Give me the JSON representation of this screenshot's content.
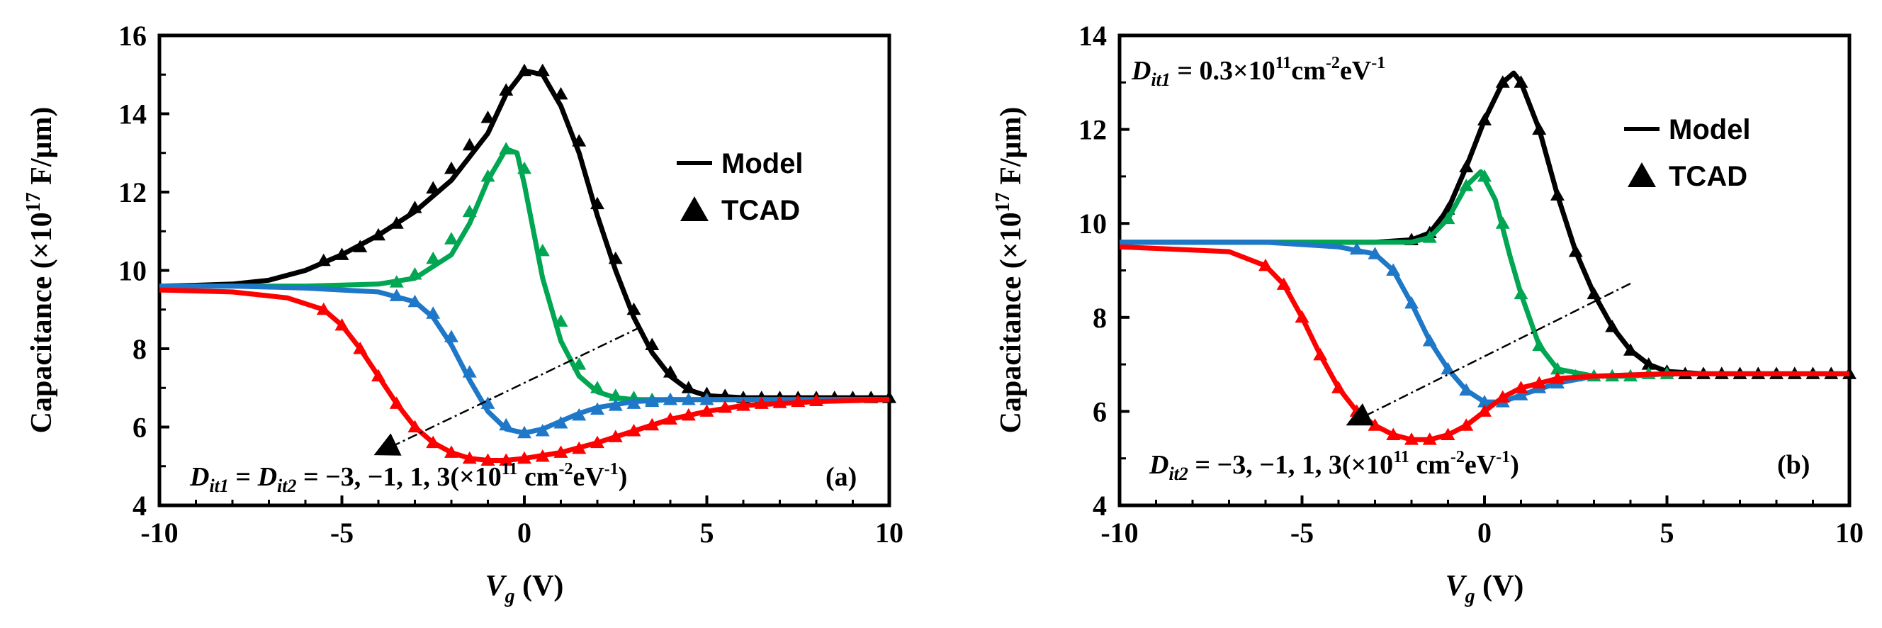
{
  "chart_data": [
    {
      "type": "line",
      "panel_label": "(a)",
      "xlabel": "V_g (V)",
      "xlabel_main": "V",
      "xlabel_sub": "g",
      "xlabel_unit": " (V)",
      "ylabel": "Capacitance (×10^17 F/μm)",
      "ylabel_pre": "Capacitance (",
      "ylabel_times": "×",
      "ylabel_ten": "10",
      "ylabel_exp": "17",
      "ylabel_post": " F/μm)",
      "xlim": [
        -10,
        10
      ],
      "ylim": [
        4,
        16
      ],
      "xticks": [
        -10,
        -5,
        0,
        5,
        10
      ],
      "yticks": [
        4,
        6,
        8,
        10,
        12,
        14,
        16
      ],
      "legend": {
        "position": "right-middle",
        "model": "Model",
        "tcad": "TCAD"
      },
      "annotations": [
        {
          "id": "dit",
          "parts": [
            "D",
            "it1",
            " = ",
            "D",
            "it2",
            " = −3, −1, 1, 3(×10",
            "11",
            " cm",
            "-2",
            "eV",
            "-1",
            ")"
          ]
        }
      ],
      "arrow": {
        "from": [
          3.7,
          8.5
        ],
        "to": [
          -4.0,
          5.2
        ]
      },
      "series": [
        {
          "name": "Dit = 3",
          "color": "#000000",
          "model_x": [
            -10,
            -9,
            -8,
            -7,
            -6,
            -5,
            -4,
            -3,
            -2,
            -1,
            -0.5,
            0,
            0.5,
            1,
            1.5,
            2,
            2.5,
            3,
            3.5,
            4,
            4.5,
            5,
            6,
            7,
            8,
            9,
            10
          ],
          "model_y": [
            9.6,
            9.62,
            9.65,
            9.75,
            10.0,
            10.4,
            10.9,
            11.5,
            12.3,
            13.5,
            14.5,
            15.1,
            15.0,
            14.2,
            13.0,
            11.4,
            10.0,
            8.8,
            7.9,
            7.3,
            6.95,
            6.8,
            6.75,
            6.75,
            6.75,
            6.75,
            6.75
          ],
          "tcad_x": [
            -5.5,
            -5,
            -4.5,
            -4,
            -3.5,
            -3,
            -2.5,
            -2,
            -1.5,
            -1,
            -0.5,
            0,
            0.5,
            1,
            1.5,
            2,
            2.5,
            3,
            3.5,
            4,
            4.5,
            5,
            5.5,
            6,
            6.5,
            7,
            7.5,
            8,
            8.5,
            9,
            9.5,
            10
          ],
          "tcad_y": [
            10.25,
            10.4,
            10.6,
            10.9,
            11.2,
            11.6,
            12.1,
            12.6,
            13.2,
            13.9,
            14.6,
            15.1,
            15.1,
            14.5,
            13.3,
            11.7,
            10.3,
            9.0,
            8.1,
            7.4,
            7.0,
            6.85,
            6.8,
            6.75,
            6.75,
            6.75,
            6.75,
            6.75,
            6.75,
            6.75,
            6.75,
            6.75
          ]
        },
        {
          "name": "Dit = 1",
          "color": "#00a651",
          "model_x": [
            -10,
            -8,
            -6,
            -4,
            -3,
            -2,
            -1.5,
            -1,
            -0.5,
            -0.2,
            0,
            0.5,
            1,
            1.5,
            2,
            2.5,
            3,
            4,
            5,
            10
          ],
          "model_y": [
            9.6,
            9.6,
            9.6,
            9.65,
            9.8,
            10.4,
            11.2,
            12.3,
            13.1,
            13.0,
            12.2,
            9.8,
            8.2,
            7.3,
            6.9,
            6.75,
            6.7,
            6.7,
            6.7,
            6.7
          ],
          "tcad_x": [
            -3.5,
            -3,
            -2.5,
            -2,
            -1.5,
            -1,
            -0.5,
            0,
            0.5,
            1,
            1.5,
            2,
            2.5,
            3,
            3.5,
            4
          ],
          "tcad_y": [
            9.7,
            9.9,
            10.3,
            10.8,
            11.5,
            12.4,
            13.1,
            12.6,
            10.5,
            8.7,
            7.6,
            7.0,
            6.8,
            6.75,
            6.7,
            6.7
          ]
        },
        {
          "name": "Dit = −1",
          "color": "#1f77c8",
          "model_x": [
            -10,
            -8,
            -6,
            -4,
            -3,
            -2.5,
            -2,
            -1.5,
            -1,
            -0.5,
            0,
            0.5,
            1,
            1.5,
            2,
            3,
            4,
            5,
            10
          ],
          "model_y": [
            9.6,
            9.6,
            9.55,
            9.45,
            9.2,
            8.8,
            8.1,
            7.2,
            6.4,
            5.95,
            5.85,
            5.95,
            6.15,
            6.35,
            6.5,
            6.65,
            6.7,
            6.7,
            6.7
          ],
          "tcad_x": [
            -3.5,
            -3,
            -2.5,
            -2,
            -1.5,
            -1,
            -0.5,
            0,
            0.5,
            1,
            1.5,
            2,
            2.5,
            3,
            3.5,
            4,
            4.5,
            5
          ],
          "tcad_y": [
            9.35,
            9.2,
            8.9,
            8.3,
            7.4,
            6.6,
            6.05,
            5.85,
            5.9,
            6.1,
            6.3,
            6.45,
            6.55,
            6.6,
            6.65,
            6.7,
            6.7,
            6.7
          ]
        },
        {
          "name": "Dit = −3",
          "color": "#ff0000",
          "model_x": [
            -10,
            -8,
            -6.5,
            -5.5,
            -5,
            -4.5,
            -4,
            -3.5,
            -3,
            -2.5,
            -2,
            -1.5,
            -1,
            -0.5,
            0,
            1,
            2,
            3,
            4,
            5,
            6,
            7,
            8,
            10
          ],
          "model_y": [
            9.5,
            9.45,
            9.3,
            9.0,
            8.6,
            8.0,
            7.3,
            6.6,
            6.0,
            5.6,
            5.35,
            5.2,
            5.15,
            5.15,
            5.2,
            5.35,
            5.6,
            5.9,
            6.2,
            6.4,
            6.55,
            6.6,
            6.65,
            6.7
          ],
          "tcad_x": [
            -5.5,
            -5,
            -4.5,
            -4,
            -3.5,
            -3,
            -2.5,
            -2,
            -1.5,
            -1,
            -0.5,
            0,
            0.5,
            1,
            1.5,
            2,
            2.5,
            3,
            3.5,
            4,
            4.5,
            5,
            5.5,
            6,
            6.5,
            7,
            7.5,
            8
          ],
          "tcad_y": [
            9.0,
            8.6,
            8.0,
            7.3,
            6.6,
            6.0,
            5.6,
            5.35,
            5.2,
            5.15,
            5.15,
            5.2,
            5.25,
            5.35,
            5.45,
            5.6,
            5.75,
            5.9,
            6.05,
            6.2,
            6.3,
            6.4,
            6.5,
            6.55,
            6.6,
            6.62,
            6.65,
            6.67
          ]
        }
      ]
    },
    {
      "type": "line",
      "panel_label": "(b)",
      "xlabel": "V_g (V)",
      "xlabel_main": "V",
      "xlabel_sub": "g",
      "xlabel_unit": " (V)",
      "ylabel": "Capacitance (×10^17 F/μm)",
      "ylabel_pre": "Capacitance (",
      "ylabel_times": "×",
      "ylabel_ten": "10",
      "ylabel_exp": "17",
      "ylabel_post": " F/μm)",
      "xlim": [
        -10,
        10
      ],
      "ylim": [
        4,
        14
      ],
      "xticks": [
        -10,
        -5,
        0,
        5,
        10
      ],
      "yticks": [
        4,
        6,
        8,
        10,
        12,
        14
      ],
      "legend": {
        "position": "right-upper",
        "model": "Model",
        "tcad": "TCAD"
      },
      "annotations": [
        {
          "id": "dit1",
          "parts": [
            "D",
            "it1",
            " = 0.3×10",
            "11",
            "cm",
            "-2",
            "eV",
            "-1"
          ]
        },
        {
          "id": "dit2",
          "parts": [
            "D",
            "it2",
            " = −3, −1, 1, 3(×10",
            "11",
            " cm",
            "-2",
            "eV",
            "-1",
            ")"
          ]
        }
      ],
      "arrow": {
        "from": [
          4.0,
          8.7
        ],
        "to": [
          -3.7,
          5.7
        ]
      },
      "series": [
        {
          "name": "Dit = 3",
          "color": "#000000",
          "model_x": [
            -10,
            -5,
            -3,
            -2,
            -1.5,
            -1,
            -0.5,
            0,
            0.5,
            0.8,
            1,
            1.5,
            2,
            2.5,
            3,
            3.5,
            4,
            4.5,
            5,
            6,
            8,
            10
          ],
          "model_y": [
            9.6,
            9.6,
            9.6,
            9.65,
            9.8,
            10.3,
            11.2,
            12.2,
            13.0,
            13.2,
            13.0,
            12.0,
            10.6,
            9.4,
            8.5,
            7.8,
            7.3,
            7.0,
            6.85,
            6.8,
            6.8,
            6.8
          ],
          "tcad_x": [
            -2,
            -1.5,
            -1,
            -0.5,
            0,
            0.5,
            1,
            1.5,
            2,
            2.5,
            3,
            3.5,
            4,
            4.5,
            5,
            5.5,
            6,
            6.5,
            7,
            7.5,
            8,
            8.5,
            9,
            9.5,
            10
          ],
          "tcad_y": [
            9.65,
            9.8,
            10.3,
            11.2,
            12.2,
            13.0,
            13.0,
            12.0,
            10.6,
            9.4,
            8.5,
            7.8,
            7.3,
            7.0,
            6.85,
            6.8,
            6.8,
            6.8,
            6.8,
            6.8,
            6.8,
            6.8,
            6.8,
            6.8,
            6.8
          ]
        },
        {
          "name": "Dit = 1",
          "color": "#00a651",
          "model_x": [
            -10,
            -5,
            -3,
            -2,
            -1.5,
            -1,
            -0.5,
            -0.1,
            0.3,
            0.7,
            1,
            1.5,
            2,
            3,
            4,
            5,
            10
          ],
          "model_y": [
            9.6,
            9.6,
            9.6,
            9.6,
            9.7,
            10.1,
            10.8,
            11.1,
            10.5,
            9.3,
            8.5,
            7.4,
            6.9,
            6.75,
            6.75,
            6.8,
            6.8
          ],
          "tcad_x": [
            -1.5,
            -1,
            -0.5,
            0,
            0.5,
            1,
            1.5,
            2,
            2.5,
            3,
            3.5,
            4,
            4.5,
            5
          ],
          "tcad_y": [
            9.7,
            10.1,
            10.8,
            11.0,
            10.0,
            8.5,
            7.4,
            6.9,
            6.75,
            6.75,
            6.75,
            6.75,
            6.8,
            6.8
          ]
        },
        {
          "name": "Dit = −1",
          "color": "#1f77c8",
          "model_x": [
            -10,
            -6,
            -4,
            -3,
            -2.5,
            -2,
            -1.5,
            -1,
            -0.5,
            0,
            0.5,
            1,
            2,
            3,
            5,
            10
          ],
          "model_y": [
            9.6,
            9.6,
            9.5,
            9.35,
            9.0,
            8.3,
            7.5,
            6.9,
            6.45,
            6.2,
            6.2,
            6.35,
            6.6,
            6.75,
            6.8,
            6.8
          ],
          "tcad_x": [
            -3.5,
            -3,
            -2.5,
            -2,
            -1.5,
            -1,
            -0.5,
            0,
            0.5,
            1,
            1.5,
            2
          ],
          "tcad_y": [
            9.45,
            9.35,
            9.0,
            8.3,
            7.5,
            6.9,
            6.45,
            6.2,
            6.2,
            6.35,
            6.5,
            6.6
          ]
        },
        {
          "name": "Dit = −3",
          "color": "#ff0000",
          "model_x": [
            -10,
            -7,
            -6,
            -5.5,
            -5,
            -4.5,
            -4,
            -3.5,
            -3,
            -2.5,
            -2,
            -1.5,
            -1,
            -0.5,
            0,
            0.5,
            1,
            2,
            3,
            5,
            10
          ],
          "model_y": [
            9.5,
            9.4,
            9.1,
            8.7,
            8.0,
            7.2,
            6.5,
            6.0,
            5.7,
            5.5,
            5.4,
            5.4,
            5.5,
            5.7,
            6.0,
            6.3,
            6.5,
            6.7,
            6.75,
            6.8,
            6.8
          ],
          "tcad_x": [
            -6,
            -5.5,
            -5,
            -4.5,
            -4,
            -3.5,
            -3,
            -2.5,
            -2,
            -1.5,
            -1,
            -0.5,
            0,
            0.5,
            1,
            1.5,
            2
          ],
          "tcad_y": [
            9.1,
            8.7,
            8.0,
            7.2,
            6.5,
            6.0,
            5.7,
            5.5,
            5.4,
            5.4,
            5.5,
            5.7,
            6.0,
            6.3,
            6.5,
            6.6,
            6.7
          ]
        }
      ]
    }
  ]
}
